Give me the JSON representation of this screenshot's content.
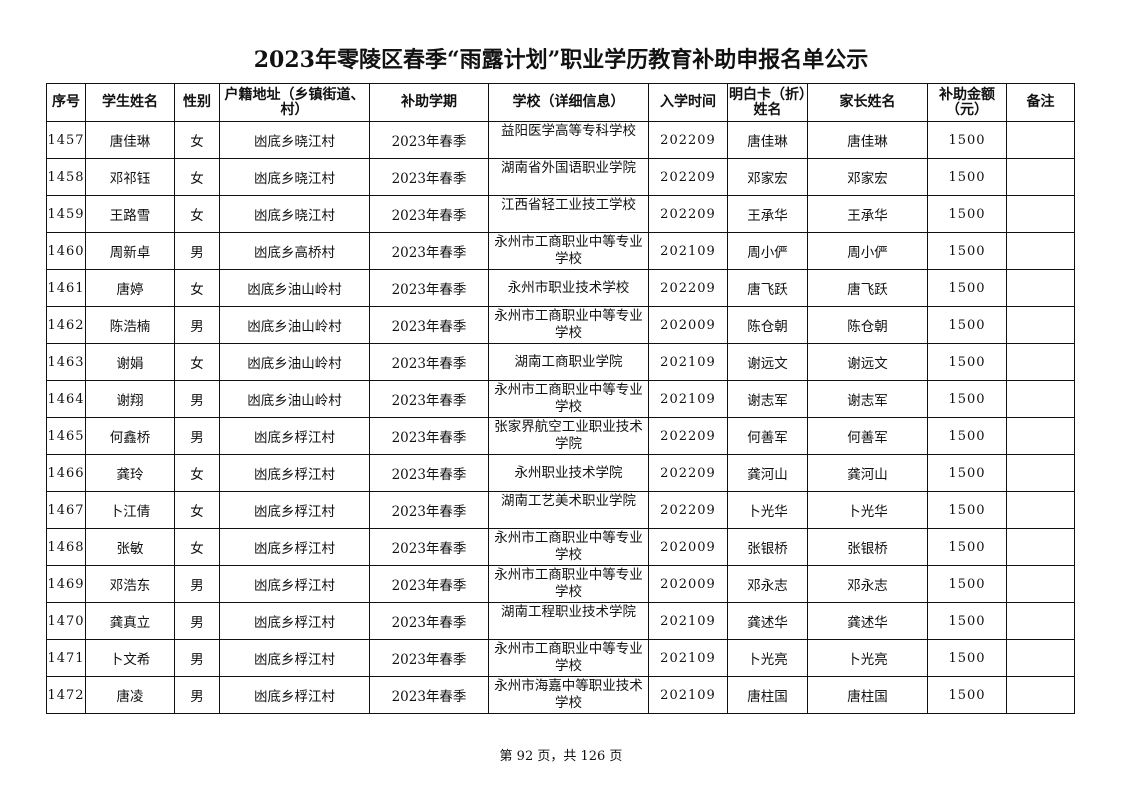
{
  "title": "2023年零陵区春季“雨露计划”职业学历教育补助申报名单公示",
  "headers": [
    "序号",
    "学生姓名",
    "性别",
    "户籍地址（乡镇街道、村）",
    "补助学期",
    "学校（详细信息）",
    "入学时间",
    "明白卡（折）姓名",
    "家长姓名",
    "补助金额（元）",
    "备注"
  ],
  "rows": [
    [
      "1457",
      "唐佳琳",
      "女",
      "凼底乡晓江村",
      "2023年春季",
      "益阳医学高等专科学校",
      "202209",
      "唐佳琳",
      "唐佳琳",
      "1500",
      ""
    ],
    [
      "1458",
      "邓祁钰",
      "女",
      "凼底乡晓江村",
      "2023年春季",
      "湖南省外国语职业学院",
      "202209",
      "邓家宏",
      "邓家宏",
      "1500",
      ""
    ],
    [
      "1459",
      "王路雪",
      "女",
      "凼底乡晓江村",
      "2023年春季",
      "江西省轻工业技工学校",
      "202209",
      "王承华",
      "王承华",
      "1500",
      ""
    ],
    [
      "1460",
      "周新卓",
      "男",
      "凼底乡高桥村",
      "2023年春季",
      "永州市工商职业中等专业学校",
      "202109",
      "周小俨",
      "周小俨",
      "1500",
      ""
    ],
    [
      "1461",
      "唐婷",
      "女",
      "凼底乡油山岭村",
      "2023年春季",
      "永州市职业技术学校",
      "202209",
      "唐飞跃",
      "唐飞跃",
      "1500",
      ""
    ],
    [
      "1462",
      "陈浩楠",
      "男",
      "凼底乡油山岭村",
      "2023年春季",
      "永州市工商职业中等专业学校",
      "202009",
      "陈仓朝",
      "陈仓朝",
      "1500",
      ""
    ],
    [
      "1463",
      "谢娟",
      "女",
      "凼底乡油山岭村",
      "2023年春季",
      "湖南工商职业学院",
      "202109",
      "谢远文",
      "谢远文",
      "1500",
      ""
    ],
    [
      "1464",
      "谢翔",
      "男",
      "凼底乡油山岭村",
      "2023年春季",
      "永州市工商职业中等专业学校",
      "202109",
      "谢志军",
      "谢志军",
      "1500",
      ""
    ],
    [
      "1465",
      "何鑫桥",
      "男",
      "凼底乡桴江村",
      "2023年春季",
      "张家界航空工业职业技术学院",
      "202209",
      "何善军",
      "何善军",
      "1500",
      ""
    ],
    [
      "1466",
      "龚玲",
      "女",
      "凼底乡桴江村",
      "2023年春季",
      "永州职业技术学院",
      "202209",
      "龚河山",
      "龚河山",
      "1500",
      ""
    ],
    [
      "1467",
      "卜江倩",
      "女",
      "凼底乡桴江村",
      "2023年春季",
      "湖南工艺美术职业学院",
      "202209",
      "卜光华",
      "卜光华",
      "1500",
      ""
    ],
    [
      "1468",
      "张敏",
      "女",
      "凼底乡桴江村",
      "2023年春季",
      "永州市工商职业中等专业学校",
      "202009",
      "张银桥",
      "张银桥",
      "1500",
      ""
    ],
    [
      "1469",
      "邓浩东",
      "男",
      "凼底乡桴江村",
      "2023年春季",
      "永州市工商职业中等专业学校",
      "202009",
      "邓永志",
      "邓永志",
      "1500",
      ""
    ],
    [
      "1470",
      "龚真立",
      "男",
      "凼底乡桴江村",
      "2023年春季",
      "湖南工程职业技术学院",
      "202109",
      "龚述华",
      "龚述华",
      "1500",
      ""
    ],
    [
      "1471",
      "卜文希",
      "男",
      "凼底乡桴江村",
      "2023年春季",
      "永州市工商职业中等专业学校",
      "202109",
      "卜光亮",
      "卜光亮",
      "1500",
      ""
    ],
    [
      "1472",
      "唐凌",
      "男",
      "凼底乡桴江村",
      "2023年春季",
      "永州市海嘉中等职业技术学校",
      "202109",
      "唐柱国",
      "唐柱国",
      "1500",
      ""
    ]
  ],
  "footer": "第 92 页，共 126 页"
}
